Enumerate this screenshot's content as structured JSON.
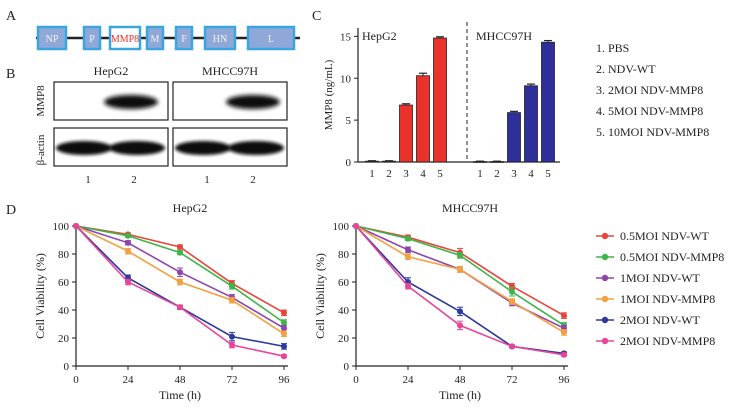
{
  "panel_labels": {
    "a": "A",
    "b": "B",
    "c": "C",
    "d": "D"
  },
  "genome": {
    "segments": [
      "NP",
      "P",
      "MMP8",
      "M",
      "F",
      "HN",
      "L"
    ],
    "box_color": "#3aa6df",
    "highlight_text_color": "#e8322b"
  },
  "blot": {
    "cell_lines": [
      "HepG2",
      "MHCC97H"
    ],
    "rows": [
      "MMP8",
      "β-actin"
    ],
    "lanes": [
      "1",
      "2",
      "1",
      "2"
    ]
  },
  "legend_c": [
    "1.  PBS",
    "2.  NDV-WT",
    "3.  2MOI NDV-MMP8",
    "4.  5MOI NDV-MMP8",
    "5.  10MOI NDV-MMP8"
  ],
  "legend_d": [
    {
      "label": "0.5MOI NDV-WT",
      "color": "#e8463b"
    },
    {
      "label": "0.5MOI NDV-MMP8",
      "color": "#3cb54a"
    },
    {
      "label": "1MOI NDV-WT",
      "color": "#8e44ad"
    },
    {
      "label": "1MOI NDV-MMP8",
      "color": "#f5a040"
    },
    {
      "label": "2MOI NDV-WT",
      "color": "#2b3a9e"
    },
    {
      "label": "2MOI NDV-MMP8",
      "color": "#e8459a"
    }
  ],
  "chart_data": [
    {
      "type": "bar",
      "ylabel": "MMP8 (ng/mL)",
      "ylim": [
        0,
        16
      ],
      "yticks": [
        0,
        5,
        10,
        15
      ],
      "groups": [
        {
          "name": "HepG2",
          "categories": [
            "1",
            "2",
            "3",
            "4",
            "5"
          ],
          "values": [
            0.1,
            0.1,
            6.8,
            10.3,
            14.8
          ],
          "errors": [
            0.05,
            0.05,
            0.15,
            0.3,
            0.15
          ],
          "color": "#e8322b"
        },
        {
          "name": "MHCC97H",
          "categories": [
            "1",
            "2",
            "3",
            "4",
            "5"
          ],
          "values": [
            0.05,
            0.05,
            5.9,
            9.1,
            14.3
          ],
          "errors": [
            0.05,
            0.05,
            0.15,
            0.2,
            0.2
          ],
          "color": "#2e2f9a"
        }
      ]
    },
    {
      "type": "line",
      "title": "HepG2",
      "xlabel": "Time (h)",
      "ylabel": "Cell Viability (%)",
      "x": [
        0,
        24,
        48,
        72,
        96
      ],
      "xlim": [
        0,
        96
      ],
      "ylim": [
        0,
        100
      ],
      "xticks": [
        0,
        24,
        48,
        72,
        96
      ],
      "yticks": [
        0,
        20,
        40,
        60,
        80,
        100
      ],
      "series": [
        {
          "name": "0.5MOI NDV-WT",
          "values": [
            100,
            94,
            85,
            59,
            38
          ],
          "errors": [
            0,
            1,
            1.5,
            2,
            2
          ]
        },
        {
          "name": "0.5MOI NDV-MMP8",
          "values": [
            100,
            93,
            81,
            57,
            31
          ],
          "errors": [
            0,
            1,
            1.5,
            2,
            2
          ]
        },
        {
          "name": "1MOI NDV-WT",
          "values": [
            100,
            88,
            67,
            49,
            27
          ],
          "errors": [
            0,
            1.5,
            3,
            2,
            2
          ]
        },
        {
          "name": "1MOI NDV-MMP8",
          "values": [
            100,
            82,
            60,
            47,
            23
          ],
          "errors": [
            0,
            2,
            2,
            2,
            2
          ]
        },
        {
          "name": "2MOI NDV-WT",
          "values": [
            100,
            63,
            42,
            21,
            14
          ],
          "errors": [
            0,
            2,
            1.5,
            3,
            2
          ]
        },
        {
          "name": "2MOI NDV-MMP8",
          "values": [
            100,
            60,
            42,
            15,
            7
          ],
          "errors": [
            0,
            2,
            1.5,
            2,
            1
          ]
        }
      ]
    },
    {
      "type": "line",
      "title": "MHCC97H",
      "xlabel": "Time (h)",
      "ylabel": "Cell Viability (%)",
      "x": [
        0,
        24,
        48,
        72,
        96
      ],
      "xlim": [
        0,
        96
      ],
      "ylim": [
        0,
        100
      ],
      "xticks": [
        0,
        24,
        48,
        72,
        96
      ],
      "yticks": [
        0,
        20,
        40,
        60,
        80,
        100
      ],
      "series": [
        {
          "name": "0.5MOI NDV-WT",
          "values": [
            100,
            92,
            81,
            57,
            36
          ],
          "errors": [
            0,
            1.5,
            3,
            2,
            2
          ]
        },
        {
          "name": "0.5MOI NDV-MMP8",
          "values": [
            100,
            91,
            79,
            53,
            29
          ],
          "errors": [
            0,
            1.5,
            2,
            3,
            2
          ]
        },
        {
          "name": "1MOI NDV-WT",
          "values": [
            100,
            83,
            69,
            45,
            27
          ],
          "errors": [
            0,
            2,
            2,
            2,
            2
          ]
        },
        {
          "name": "1MOI NDV-MMP8",
          "values": [
            100,
            78,
            69,
            46,
            24
          ],
          "errors": [
            0,
            2,
            2,
            2,
            2
          ]
        },
        {
          "name": "2MOI NDV-WT",
          "values": [
            100,
            60,
            39,
            14,
            9
          ],
          "errors": [
            0,
            3,
            3,
            1,
            1
          ]
        },
        {
          "name": "2MOI NDV-MMP8",
          "values": [
            100,
            57,
            29,
            14,
            8
          ],
          "errors": [
            0,
            2,
            3,
            1,
            1
          ]
        }
      ]
    }
  ]
}
